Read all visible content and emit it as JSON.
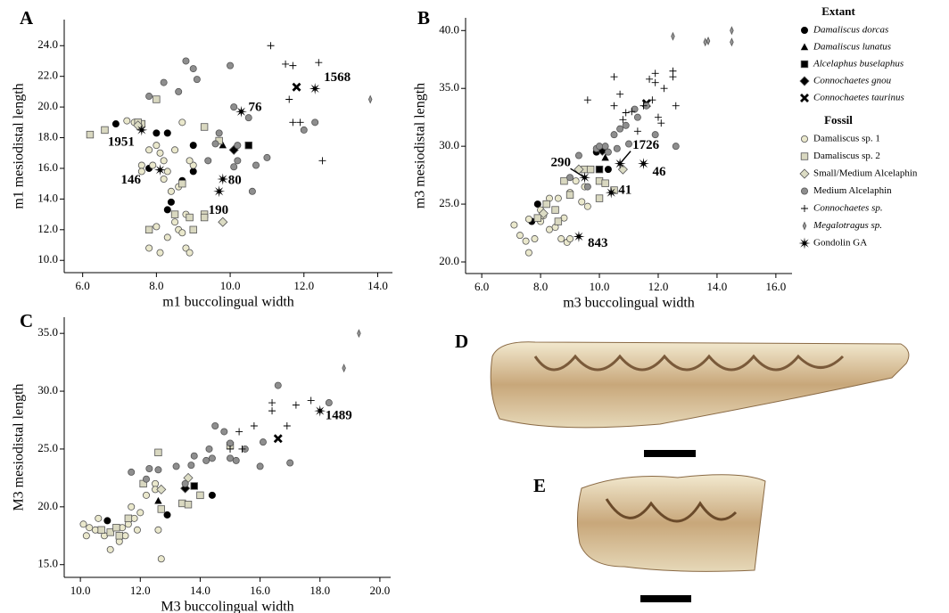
{
  "chart_data": [
    {
      "type": "scatter",
      "panel_label": "A",
      "x_label": "m1 buccolingual width",
      "y_label": "m1 mesiodistal length",
      "xlim": [
        5.5,
        14.4
      ],
      "ylim": [
        9.2,
        25.7
      ],
      "xticks": [
        {
          "value": 6,
          "label": "6.0"
        },
        {
          "value": 8,
          "label": "8.0"
        },
        {
          "value": 10,
          "label": "10.0"
        },
        {
          "value": 12,
          "label": "12.0"
        },
        {
          "value": 14,
          "label": "14.0"
        }
      ],
      "yticks": [
        {
          "value": 10,
          "label": "10.0"
        },
        {
          "value": 12,
          "label": "12.0"
        },
        {
          "value": 14,
          "label": "14.0"
        },
        {
          "value": 16,
          "label": "16.0"
        },
        {
          "value": 18,
          "label": "18.0"
        },
        {
          "value": 20,
          "label": "20.0"
        },
        {
          "value": 22,
          "label": "22.0"
        },
        {
          "value": 24,
          "label": "24.0"
        }
      ],
      "legend_titles": [
        "Extant",
        "Fossil"
      ],
      "series": [
        {
          "name": "Damaliscus dorcas",
          "marker": "circle",
          "color": "#000000",
          "x": [
            6.9,
            7.8,
            8.0,
            8.3,
            8.3,
            8.4,
            8.7,
            9.0,
            9.0
          ],
          "values": [
            18.9,
            16.0,
            18.3,
            18.3,
            13.3,
            13.8,
            15.2,
            15.8,
            17.5
          ]
        },
        {
          "name": "Damaliscus lunatus",
          "marker": "triangle",
          "color": "#000000",
          "x": [
            9.8
          ],
          "values": [
            17.5
          ]
        },
        {
          "name": "Alcelaphus buselaphus",
          "marker": "square",
          "color": "#000000",
          "x": [
            10.5
          ],
          "values": [
            17.5
          ]
        },
        {
          "name": "Connochaetes gnou",
          "marker": "diamond",
          "color": "#000000",
          "x": [
            10.1
          ],
          "values": [
            17.2
          ]
        },
        {
          "name": "Connochaetes taurinus",
          "marker": "x",
          "color": "#000000",
          "x": [
            11.8
          ],
          "values": [
            21.3
          ]
        },
        {
          "name": "Damaliscus sp. 1",
          "marker": "circle",
          "color": "#eae8cc",
          "x": [
            7.2,
            7.4,
            7.6,
            7.6,
            7.8,
            7.9,
            8.0,
            8.1,
            8.2,
            8.3,
            8.2,
            8.4,
            8.0,
            8.1,
            7.8,
            8.3,
            8.5,
            8.6,
            8.7,
            8.8,
            8.9,
            8.8,
            9.0,
            8.7,
            8.5,
            8.9,
            8.6
          ],
          "values": [
            19.1,
            19.0,
            16.2,
            15.8,
            17.2,
            16.2,
            17.5,
            17.0,
            16.5,
            15.8,
            15.3,
            14.5,
            12.2,
            10.5,
            10.8,
            11.5,
            12.5,
            12.0,
            11.8,
            10.8,
            10.5,
            13.0,
            16.2,
            19.0,
            17.2,
            16.5,
            14.8
          ]
        },
        {
          "name": "Damaliscus sp. 2",
          "marker": "square",
          "color": "#d9d8c0",
          "x": [
            6.2,
            6.6,
            7.6,
            8.0,
            9.3,
            9.3,
            7.8,
            8.5,
            8.9,
            9.0,
            9.3,
            8.7,
            7.5,
            9.7
          ],
          "values": [
            18.2,
            18.5,
            18.9,
            20.5,
            18.7,
            13.0,
            12.0,
            13.0,
            12.8,
            12.0,
            12.8,
            15.0,
            19.0,
            17.8
          ]
        },
        {
          "name": "Small/Medium Alcelaphin",
          "marker": "diamond",
          "color": "#dcdcc4",
          "x": [
            9.8,
            7.5
          ],
          "values": [
            12.5,
            18.8
          ]
        },
        {
          "name": "Medium Alcelaphin",
          "marker": "circle",
          "color": "#8e8e8e",
          "x": [
            7.8,
            8.2,
            8.8,
            9.0,
            9.1,
            10.0,
            8.6,
            9.7,
            10.1,
            10.2,
            10.2,
            10.1,
            10.7,
            11.0,
            10.6,
            12.3,
            12.0,
            10.5,
            9.4,
            9.6
          ],
          "values": [
            20.7,
            21.6,
            23.0,
            22.5,
            21.8,
            22.7,
            21.0,
            18.3,
            20.0,
            17.5,
            16.5,
            16.1,
            16.2,
            16.7,
            14.5,
            19.0,
            18.5,
            19.3,
            16.5,
            17.6
          ]
        },
        {
          "name": "Connochaetes sp.",
          "marker": "plus",
          "color": "#000000",
          "x": [
            11.1,
            11.5,
            11.7,
            12.4,
            11.6,
            12.5,
            11.7,
            11.9
          ],
          "values": [
            24.0,
            22.8,
            22.7,
            22.9,
            20.5,
            16.5,
            19.0,
            19.0
          ]
        },
        {
          "name": "Megalotragus sp.",
          "marker": "thin-diamond",
          "color": "#9a9a9a",
          "x": [
            13.8
          ],
          "values": [
            20.5
          ]
        },
        {
          "name": "Gondolin GA",
          "marker": "star",
          "color": "#000000",
          "x": [
            7.6,
            8.1,
            9.8,
            9.7,
            10.3,
            12.3
          ],
          "values": [
            18.5,
            15.9,
            15.3,
            14.5,
            19.7,
            21.2
          ],
          "point_labels": [
            "1951",
            "146",
            "80",
            "190",
            "76",
            "1568"
          ]
        }
      ]
    },
    {
      "type": "scatter",
      "panel_label": "B",
      "x_label": "m3 buccolingual width",
      "y_label": "m3 mesiodistal length",
      "xlim": [
        5.45,
        16.55
      ],
      "ylim": [
        19.0,
        41.1
      ],
      "xticks": [
        {
          "value": 6,
          "label": "6.0"
        },
        {
          "value": 8,
          "label": "8.0"
        },
        {
          "value": 10,
          "label": "10.0"
        },
        {
          "value": 12,
          "label": "12.0"
        },
        {
          "value": 14,
          "label": "14.0"
        },
        {
          "value": 16,
          "label": "16.0"
        }
      ],
      "yticks": [
        {
          "value": 20,
          "label": "20.0"
        },
        {
          "value": 25,
          "label": "25.0"
        },
        {
          "value": 30,
          "label": "30.0"
        },
        {
          "value": 35,
          "label": "35.0"
        },
        {
          "value": 40,
          "label": "40.0"
        }
      ],
      "series": [
        {
          "name": "Damaliscus dorcas",
          "marker": "circle",
          "color": "#000000",
          "x": [
            7.7,
            7.9,
            9.9,
            10.3
          ],
          "values": [
            23.5,
            25.0,
            29.5,
            28.0
          ]
        },
        {
          "name": "Damaliscus lunatus",
          "marker": "triangle",
          "color": "#000000",
          "x": [
            10.2
          ],
          "values": [
            29.0
          ]
        },
        {
          "name": "Alcelaphus buselaphus",
          "marker": "square",
          "color": "#000000",
          "x": [
            10.0
          ],
          "values": [
            28.0
          ]
        },
        {
          "name": "Connochaetes gnou",
          "marker": "diamond",
          "color": "#000000",
          "x": [
            10.1
          ],
          "values": [
            29.6
          ]
        },
        {
          "name": "Connochaetes taurinus",
          "marker": "x",
          "color": "#000000",
          "x": [
            11.6
          ],
          "values": [
            33.7
          ]
        },
        {
          "name": "Damaliscus sp. 1",
          "marker": "circle",
          "color": "#eae8cc",
          "x": [
            7.1,
            7.3,
            7.5,
            7.6,
            7.8,
            8.0,
            8.1,
            8.3,
            8.5,
            8.7,
            8.9,
            9.0,
            8.6,
            9.0,
            9.5,
            9.6,
            9.2,
            8.3,
            8.0,
            7.6,
            9.4,
            8.8
          ],
          "values": [
            23.2,
            22.3,
            21.8,
            20.8,
            22.0,
            23.5,
            24.0,
            22.8,
            23.0,
            22.0,
            21.7,
            22.0,
            25.5,
            26.0,
            26.5,
            24.8,
            27.0,
            25.5,
            24.5,
            23.7,
            25.2,
            23.8
          ]
        },
        {
          "name": "Damaliscus sp. 2",
          "marker": "square",
          "color": "#d9d8c0",
          "x": [
            7.9,
            8.2,
            8.5,
            8.8,
            9.0,
            9.5,
            9.7,
            10.0,
            10.2,
            10.5,
            10.0,
            8.6
          ],
          "values": [
            23.8,
            25.0,
            24.5,
            27.0,
            25.8,
            28.0,
            28.0,
            27.0,
            26.8,
            26.2,
            25.5,
            23.5
          ]
        },
        {
          "name": "Small/Medium Alcelaphin",
          "marker": "diamond",
          "color": "#dcdcc4",
          "x": [
            8.1,
            10.8,
            9.3
          ],
          "values": [
            24.2,
            28.0,
            28.0
          ]
        },
        {
          "name": "Medium Alcelaphin",
          "marker": "circle",
          "color": "#8e8e8e",
          "x": [
            9.0,
            9.3,
            9.9,
            10.2,
            10.5,
            10.7,
            10.9,
            11.2,
            11.6,
            11.9,
            12.6,
            10.3,
            10.6,
            11.0,
            10.0,
            11.3,
            9.6
          ],
          "values": [
            27.3,
            29.2,
            29.8,
            30.0,
            31.0,
            31.5,
            31.8,
            33.2,
            33.5,
            31.0,
            30.0,
            29.5,
            29.8,
            30.2,
            30.0,
            32.5,
            26.5
          ]
        },
        {
          "name": "Connochaetes sp.",
          "marker": "plus",
          "color": "#000000",
          "x": [
            9.6,
            10.5,
            10.5,
            10.7,
            10.9,
            11.1,
            11.5,
            11.9,
            11.9,
            11.7,
            12.5,
            12.5,
            12.2,
            12.6,
            11.8,
            12.0,
            12.1,
            11.3,
            10.8
          ],
          "values": [
            34.0,
            36.0,
            33.5,
            34.5,
            32.9,
            33.0,
            33.5,
            36.3,
            35.5,
            35.8,
            36.5,
            36.0,
            35.0,
            33.5,
            34.0,
            32.5,
            32.0,
            31.3,
            32.3
          ]
        },
        {
          "name": "Megalotragus sp.",
          "marker": "thin-diamond",
          "color": "#9a9a9a",
          "x": [
            12.5,
            13.6,
            13.7,
            14.5,
            14.5
          ],
          "values": [
            39.5,
            39.0,
            39.1,
            40.0,
            39.0
          ]
        },
        {
          "name": "Gondolin GA",
          "marker": "star",
          "color": "#000000",
          "x": [
            9.3,
            9.5,
            10.4,
            10.7,
            11.5
          ],
          "values": [
            22.2,
            27.3,
            26.0,
            28.5,
            28.5
          ],
          "point_labels": [
            "843",
            "290",
            "41",
            "1726",
            "46"
          ]
        }
      ]
    },
    {
      "type": "scatter",
      "panel_label": "C",
      "x_label": "M3 buccolingual width",
      "y_label": "M3 mesiodistal length",
      "xlim": [
        9.46,
        20.36
      ],
      "ylim": [
        13.9,
        36.4
      ],
      "xticks": [
        {
          "value": 10,
          "label": "10.0"
        },
        {
          "value": 12,
          "label": "12.0"
        },
        {
          "value": 14,
          "label": "14.0"
        },
        {
          "value": 16,
          "label": "16.0"
        },
        {
          "value": 18,
          "label": "18.0"
        },
        {
          "value": 20,
          "label": "20.0"
        }
      ],
      "yticks": [
        {
          "value": 15,
          "label": "15.0"
        },
        {
          "value": 20,
          "label": "20.0"
        },
        {
          "value": 25,
          "label": "25.0"
        },
        {
          "value": 30,
          "label": "30.0"
        },
        {
          "value": 35,
          "label": "35.0"
        }
      ],
      "series": [
        {
          "name": "Damaliscus dorcas",
          "marker": "circle",
          "color": "#000000",
          "x": [
            10.9,
            12.9,
            14.4
          ],
          "values": [
            18.8,
            19.3,
            21.0
          ]
        },
        {
          "name": "Damaliscus lunatus",
          "marker": "triangle",
          "color": "#000000",
          "x": [
            12.6
          ],
          "values": [
            20.5
          ]
        },
        {
          "name": "Alcelaphus buselaphus",
          "marker": "square",
          "color": "#000000",
          "x": [
            13.8
          ],
          "values": [
            21.8
          ]
        },
        {
          "name": "Connochaetes gnou",
          "marker": "diamond",
          "color": "#000000",
          "x": [
            13.5
          ],
          "values": [
            21.6
          ]
        },
        {
          "name": "Connochaetes taurinus",
          "marker": "x",
          "color": "#000000",
          "x": [
            16.6
          ],
          "values": [
            25.9
          ]
        },
        {
          "name": "Damaliscus sp. 1",
          "marker": "circle",
          "color": "#eae8cc",
          "x": [
            10.1,
            10.3,
            10.5,
            10.6,
            10.8,
            11.0,
            11.3,
            11.5,
            11.6,
            11.8,
            12.0,
            11.7,
            12.2,
            12.5,
            12.6,
            12.7,
            12.5,
            11.4,
            10.2,
            11.9
          ],
          "values": [
            18.5,
            18.2,
            18.0,
            19.0,
            17.5,
            16.3,
            17.0,
            17.5,
            18.5,
            19.0,
            19.5,
            20.0,
            21.0,
            22.0,
            18.0,
            15.5,
            21.5,
            18.2,
            17.5,
            18.0
          ]
        },
        {
          "name": "Damaliscus sp. 2",
          "marker": "square",
          "color": "#d9d8c0",
          "x": [
            10.7,
            11.0,
            11.3,
            11.6,
            12.1,
            12.6,
            12.7,
            13.4,
            13.6,
            14.0,
            15.0,
            11.2
          ],
          "values": [
            18.0,
            17.8,
            17.5,
            19.0,
            22.0,
            24.7,
            19.8,
            20.3,
            20.2,
            21.0,
            25.3,
            18.2
          ]
        },
        {
          "name": "Small/Medium Alcelaphin",
          "marker": "diamond",
          "color": "#dcdcc4",
          "x": [
            12.7,
            13.6
          ],
          "values": [
            21.5,
            22.5
          ]
        },
        {
          "name": "Medium Alcelaphin",
          "marker": "circle",
          "color": "#8e8e8e",
          "x": [
            11.7,
            12.3,
            12.6,
            13.2,
            13.5,
            13.7,
            14.2,
            14.4,
            14.5,
            14.8,
            15.0,
            15.0,
            15.2,
            15.5,
            16.1,
            16.0,
            16.6,
            17.0,
            18.3,
            14.3,
            13.8,
            12.2
          ],
          "values": [
            23.0,
            23.3,
            23.2,
            23.5,
            22.0,
            23.6,
            24.0,
            24.2,
            27.0,
            26.5,
            25.5,
            24.2,
            24.0,
            25.0,
            25.6,
            23.5,
            30.5,
            23.8,
            29.0,
            25.0,
            24.4,
            22.4
          ]
        },
        {
          "name": "Connochaetes sp.",
          "marker": "plus",
          "color": "#000000",
          "x": [
            15.3,
            15.0,
            15.8,
            16.4,
            16.4,
            17.2,
            17.7,
            15.4,
            16.9
          ],
          "values": [
            26.5,
            25.0,
            27.0,
            28.3,
            29.0,
            28.8,
            29.2,
            25.0,
            27.0
          ]
        },
        {
          "name": "Megalotragus sp.",
          "marker": "thin-diamond",
          "color": "#9a9a9a",
          "x": [
            18.8,
            19.3
          ],
          "values": [
            32.0,
            35.0
          ]
        },
        {
          "name": "Gondolin GA",
          "marker": "star",
          "color": "#000000",
          "x": [
            18.0
          ],
          "values": [
            28.3
          ],
          "point_labels": [
            "1489"
          ]
        }
      ]
    }
  ],
  "photo_panels": [
    {
      "label": "D"
    },
    {
      "label": "E"
    }
  ]
}
